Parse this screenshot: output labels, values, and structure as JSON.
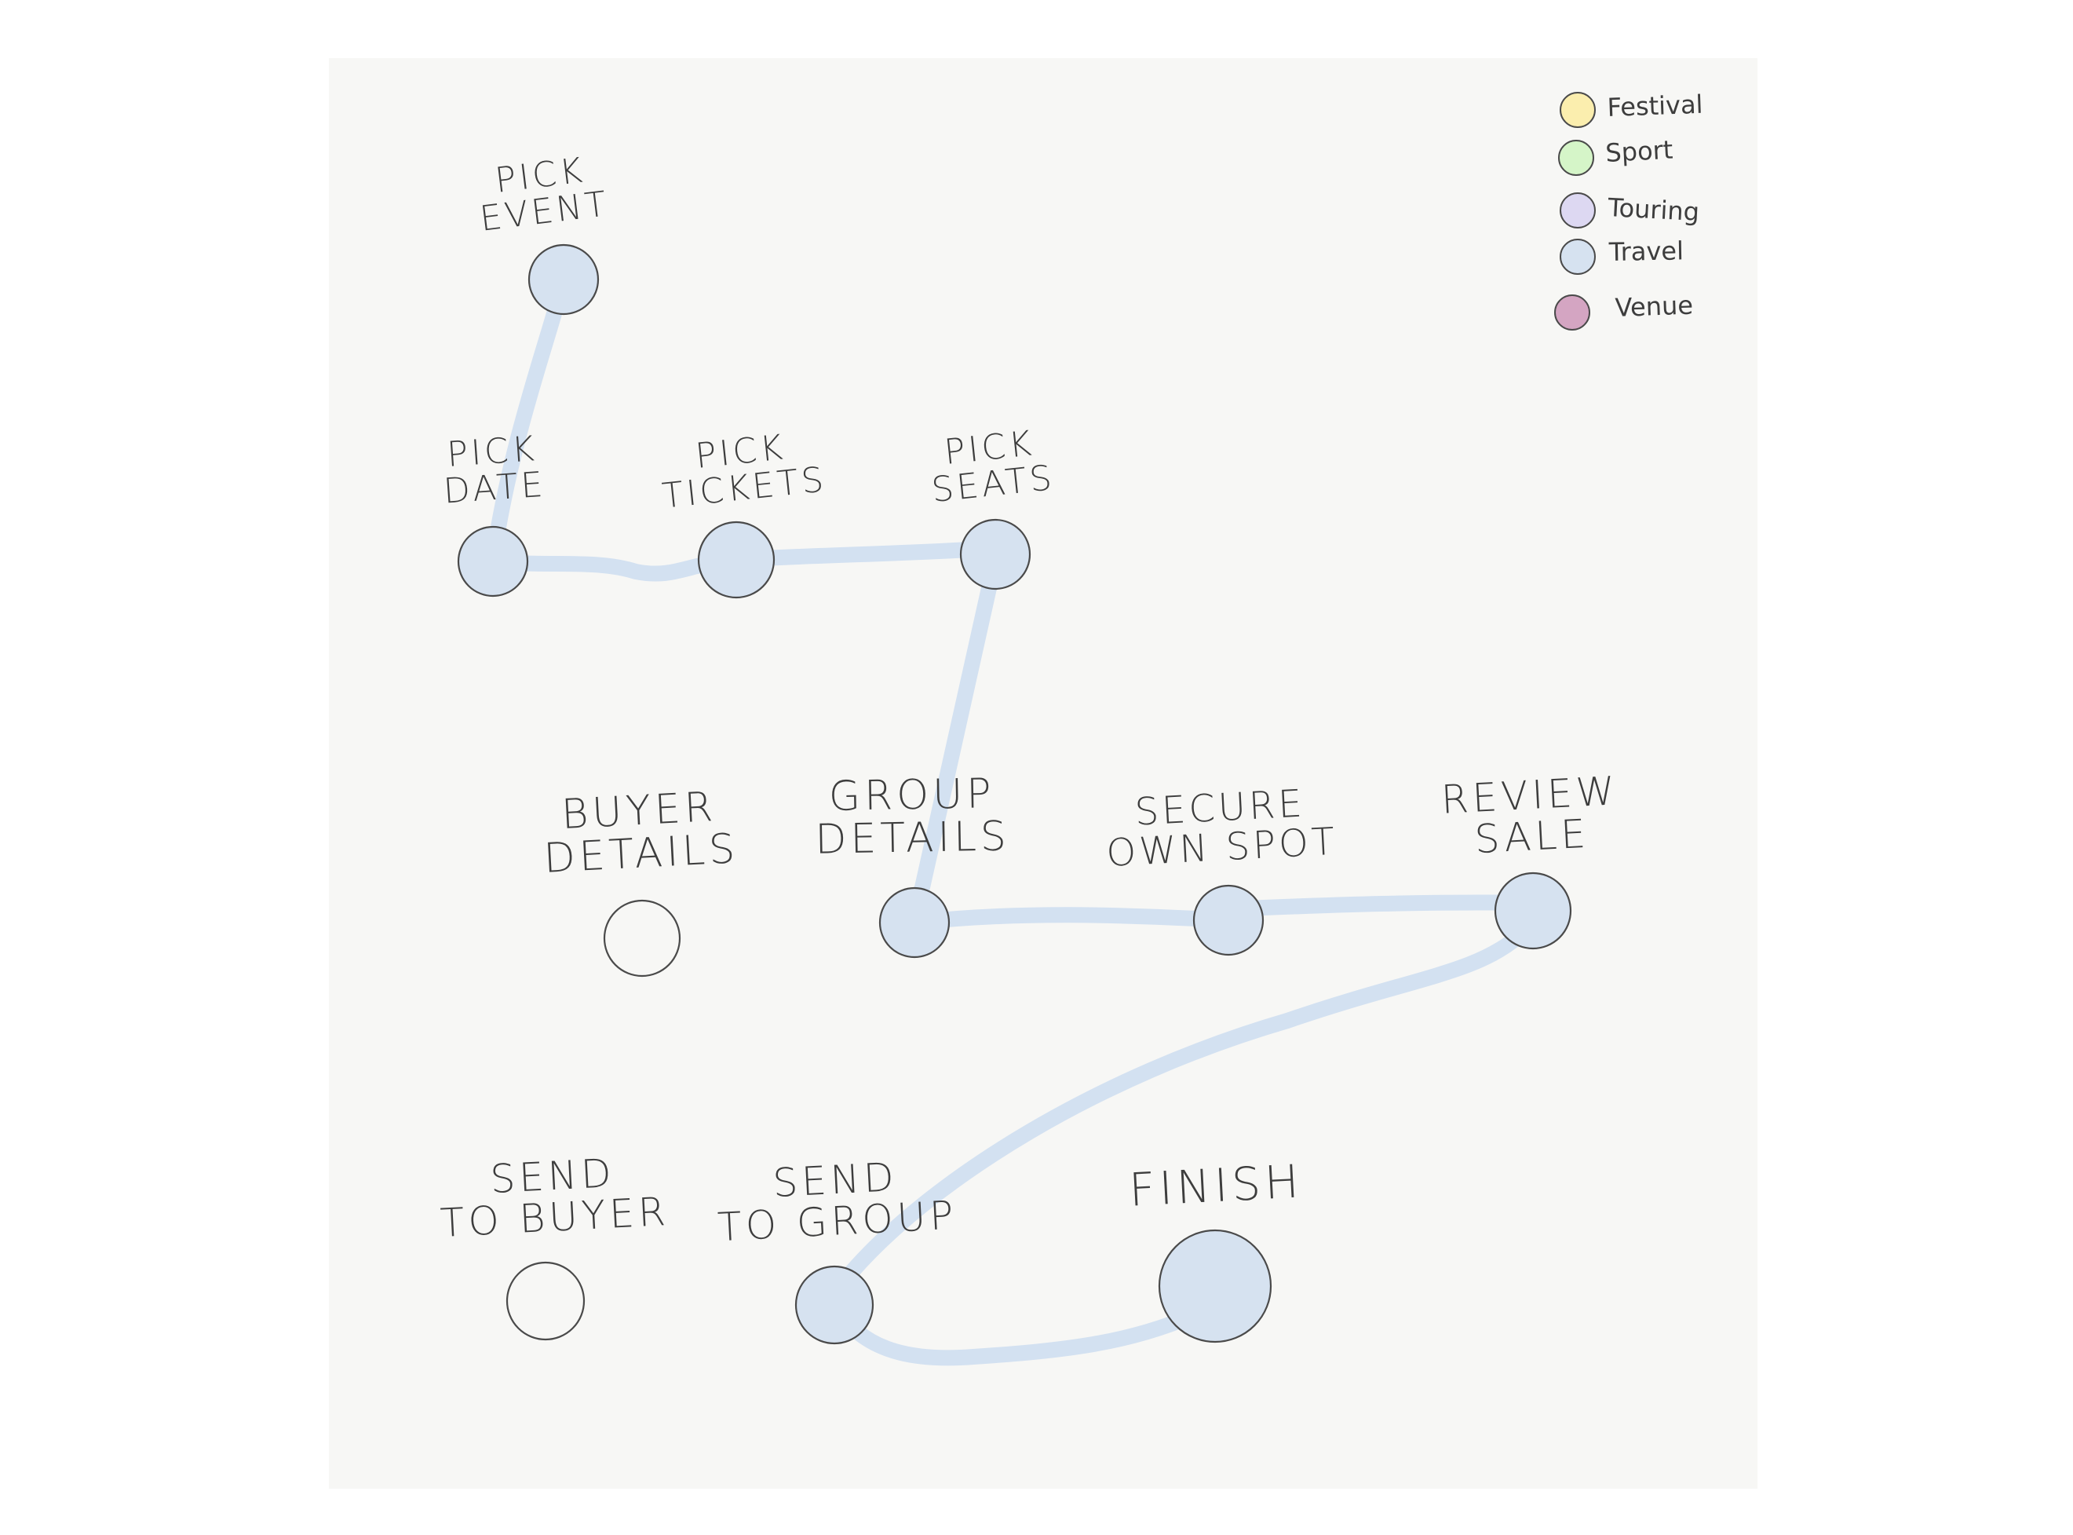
{
  "colors": {
    "background": "#ffffff",
    "paper": "#f7f7f5",
    "connector": "#d3e1f1",
    "node_fill": "#d6e2f0",
    "node_empty": "#f7f7f5",
    "outline": "#4a4a4a"
  },
  "legend": [
    {
      "label": "Festival",
      "color": "#fbeeae",
      "icon": "circle"
    },
    {
      "label": "Sport",
      "color": "#d5f5c8",
      "icon": "circle"
    },
    {
      "label": "Touring",
      "color": "#ddd8f2",
      "icon": "circle"
    },
    {
      "label": "Travel",
      "color": "#d6e2f0",
      "icon": "circle"
    },
    {
      "label": "Venue",
      "color": "#d4a5c2",
      "icon": "circle"
    }
  ],
  "nodes": [
    {
      "id": "pick-event",
      "lines": [
        "PICK",
        "EVENT"
      ],
      "category": "Travel",
      "filled": true
    },
    {
      "id": "pick-date",
      "lines": [
        "PICK",
        "DATE"
      ],
      "category": "Travel",
      "filled": true
    },
    {
      "id": "pick-tickets",
      "lines": [
        "PICK",
        "TICKETS"
      ],
      "category": "Travel",
      "filled": true
    },
    {
      "id": "pick-seats",
      "lines": [
        "PICK",
        "SEATS"
      ],
      "category": "Travel",
      "filled": true
    },
    {
      "id": "buyer-details",
      "lines": [
        "BUYER",
        "DETAILS"
      ],
      "category": "",
      "filled": false
    },
    {
      "id": "group-details",
      "lines": [
        "GROUP",
        "DETAILS"
      ],
      "category": "Travel",
      "filled": true
    },
    {
      "id": "secure-own-spot",
      "lines": [
        "SECURE",
        "OWN SPOT"
      ],
      "category": "Travel",
      "filled": true
    },
    {
      "id": "review-sale",
      "lines": [
        "REVIEW",
        "SALE"
      ],
      "category": "Travel",
      "filled": true
    },
    {
      "id": "send-to-buyer",
      "lines": [
        "SEND",
        "TO BUYER"
      ],
      "category": "",
      "filled": false
    },
    {
      "id": "send-to-group",
      "lines": [
        "SEND",
        "TO GROUP"
      ],
      "category": "Travel",
      "filled": true
    },
    {
      "id": "finish",
      "lines": [
        "FINISH"
      ],
      "category": "Travel",
      "filled": true
    }
  ],
  "route": [
    "pick-event",
    "pick-date",
    "pick-tickets",
    "pick-seats",
    "group-details",
    "secure-own-spot",
    "review-sale",
    "send-to-group",
    "finish"
  ]
}
